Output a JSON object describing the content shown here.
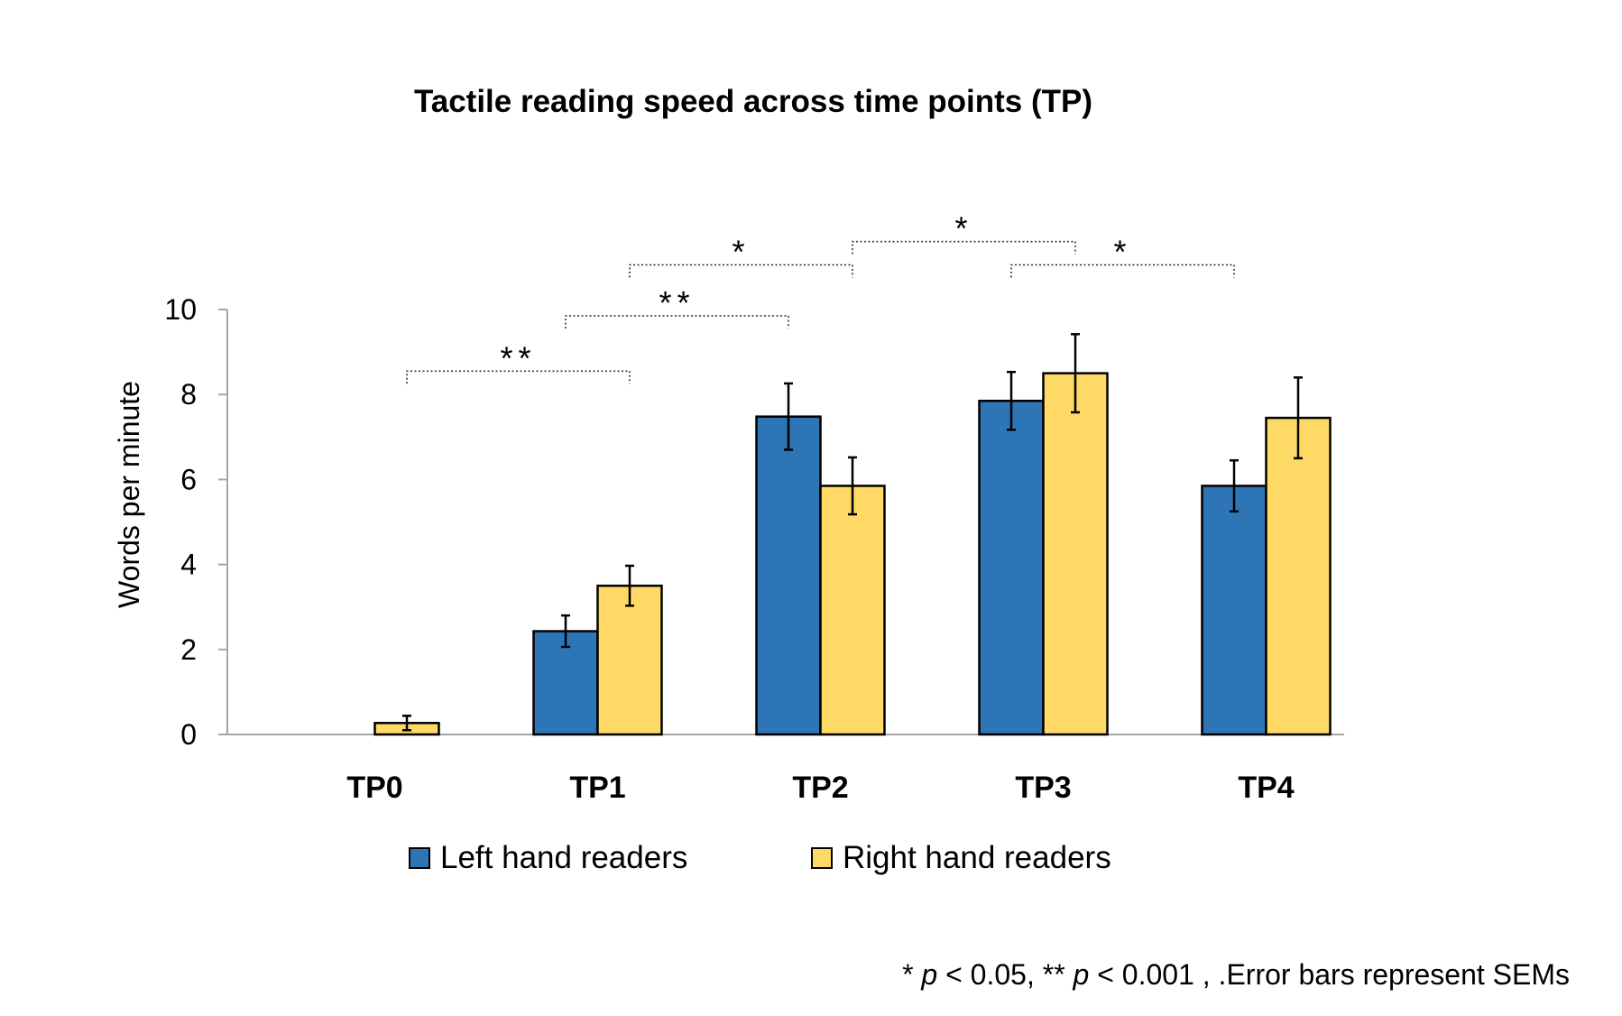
{
  "chart_data": {
    "type": "bar",
    "title": "Tactile reading speed across time points (TP)",
    "xlabel": "",
    "ylabel": "Words per minute",
    "ylim": [
      0,
      10
    ],
    "yticks": [
      0,
      2,
      4,
      6,
      8,
      10
    ],
    "categories": [
      "TP0",
      "TP1",
      "TP2",
      "TP3",
      "TP4"
    ],
    "series": [
      {
        "name": "Left hand readers",
        "color": "#2E75B6",
        "values": [
          0,
          2.43,
          7.48,
          7.85,
          5.85
        ],
        "errors": [
          0,
          0.37,
          0.78,
          0.68,
          0.6
        ]
      },
      {
        "name": "Right hand readers",
        "color": "#FFD966",
        "values": [
          0.27,
          3.5,
          5.85,
          8.5,
          7.45
        ],
        "errors": [
          0.17,
          0.47,
          0.67,
          0.92,
          0.95
        ]
      }
    ],
    "grid": false,
    "legend_position": "bottom",
    "significance": [
      {
        "label": "**",
        "from": {
          "category": 0,
          "series": 1
        },
        "to": {
          "category": 1,
          "series": 1
        },
        "level": 8.55
      },
      {
        "label": "**",
        "from": {
          "category": 1,
          "series": 0
        },
        "to": {
          "category": 2,
          "series": 0
        },
        "level": 9.85
      },
      {
        "label": "*",
        "from": {
          "category": 1,
          "series": 1
        },
        "to": {
          "category": 2,
          "series": 1
        },
        "level": 11.05
      },
      {
        "label": "*",
        "from": {
          "category": 2,
          "series": 1
        },
        "to": {
          "category": 3,
          "series": 1
        },
        "level": 11.6
      },
      {
        "label": "*",
        "from": {
          "category": 3,
          "series": 0
        },
        "to": {
          "category": 4,
          "series": 0
        },
        "level": 11.05
      }
    ],
    "footnote": {
      "star1": "* ",
      "p1": "p",
      "rest1": " < 0.05,  ** ",
      "p2": "p",
      "rest2": " < 0.001 , .Error bars represent SEMs"
    }
  }
}
